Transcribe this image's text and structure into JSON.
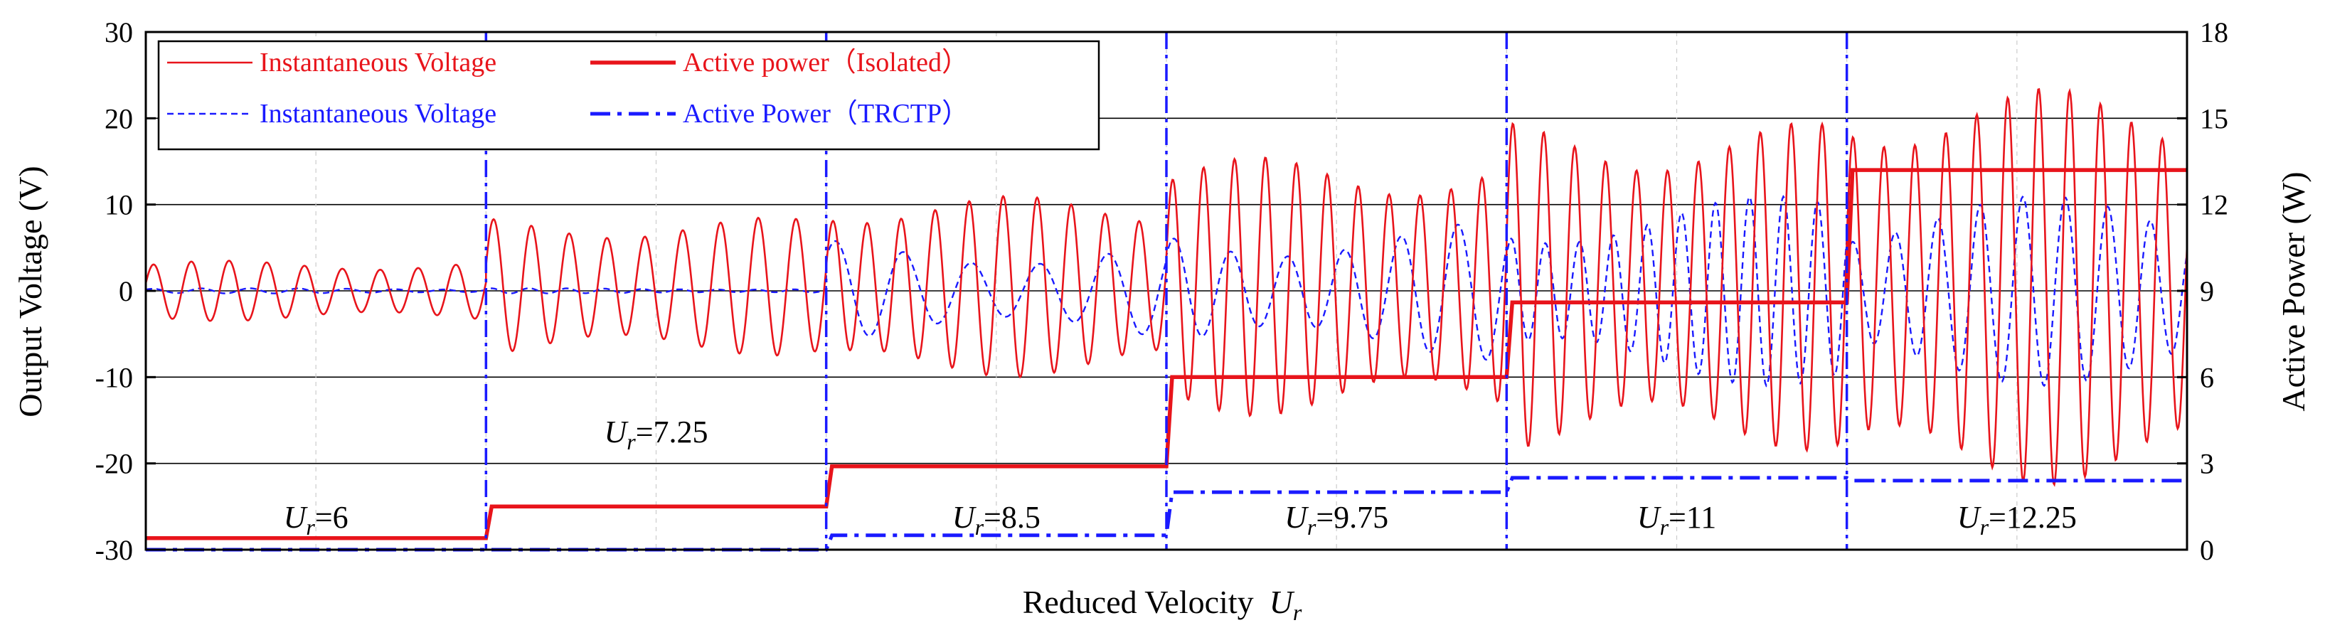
{
  "chart_data": {
    "type": "line",
    "title": "",
    "xlabel": "Reduced Velocity",
    "xlabel_symbol": "U",
    "xlabel_sub": "r",
    "ylabel_left": "Output Voltage  (V)",
    "ylabel_right": "Active Power  (W)",
    "ylim_left": [
      -30,
      30
    ],
    "ylim_right": [
      0,
      18
    ],
    "yticks_left": [
      "30",
      "20",
      "10",
      "0",
      "-10",
      "-20",
      "-30"
    ],
    "yticks_right": [
      "18",
      "15",
      "12",
      "9",
      "6",
      "3",
      "0"
    ],
    "grid": true,
    "legend_position": "top-left",
    "legend": [
      {
        "label": "Instantaneous Voltage",
        "color": "#e8141b",
        "style": "thin-solid"
      },
      {
        "label": "Active power（Isolated）",
        "color": "#e8141b",
        "style": "thick-solid"
      },
      {
        "label": "Instantaneous Voltage",
        "color": "#1a1aff",
        "style": "dash"
      },
      {
        "label": "Active Power（TRCTP）",
        "color": "#1a1aff",
        "style": "dash-dot"
      }
    ],
    "regions": [
      {
        "label_symbol": "U",
        "label_sub": "r",
        "label_value": "=6",
        "vr": 6
      },
      {
        "label_symbol": "U",
        "label_sub": "r",
        "label_value": "=7.25",
        "vr": 7.25
      },
      {
        "label_symbol": "U",
        "label_sub": "r",
        "label_value": "=8.5",
        "vr": 8.5
      },
      {
        "label_symbol": "U",
        "label_sub": "r",
        "label_value": "=9.75",
        "vr": 9.75
      },
      {
        "label_symbol": "U",
        "label_sub": "r",
        "label_value": "=11",
        "vr": 11
      },
      {
        "label_symbol": "U",
        "label_sub": "r",
        "label_value": "=12.25",
        "vr": 12.25
      }
    ],
    "series": [
      {
        "name": "Active power (Isolated)",
        "axis": "right",
        "unit": "W",
        "values": [
          0.4,
          1.5,
          2.9,
          6.0,
          8.6,
          13.2
        ]
      },
      {
        "name": "Active Power (TRCTP)",
        "axis": "right",
        "unit": "W",
        "values": [
          0.0,
          0.0,
          0.5,
          2.0,
          2.5,
          2.4
        ]
      },
      {
        "name": "Instantaneous Voltage (Isolated)",
        "axis": "left",
        "unit": "V",
        "cycles": [
          9,
          9,
          10,
          11,
          11,
          11
        ],
        "amplitude": [
          3.5,
          8,
          10.5,
          15,
          19,
          23
        ],
        "offset": [
          0,
          0.5,
          0.5,
          0.5,
          0.5,
          0.5
        ]
      },
      {
        "name": "Instantaneous Voltage (TRCTP)",
        "axis": "left",
        "unit": "V",
        "cycles": [
          7,
          9,
          5,
          6,
          10,
          8
        ],
        "amplitude": [
          0.3,
          0.3,
          6,
          8,
          11,
          11
        ],
        "offset": [
          0,
          0,
          0,
          0,
          0,
          0
        ]
      }
    ],
    "colors": {
      "red": "#e8141b",
      "blue": "#1a1aff"
    }
  }
}
